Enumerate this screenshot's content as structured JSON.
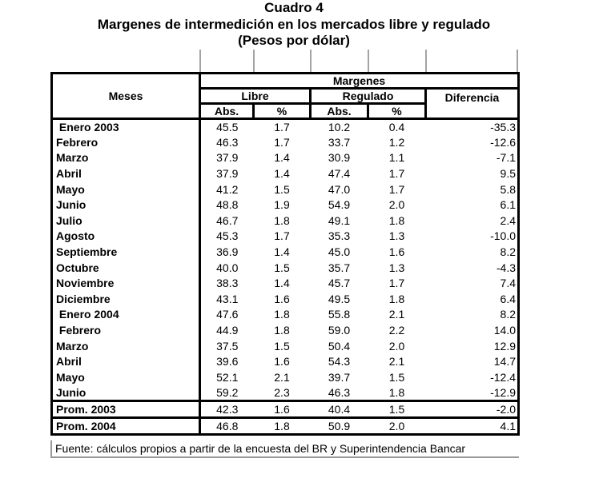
{
  "title": {
    "line1": "Cuadro 4",
    "line2": "Margenes de intermedición en los mercados libre y regulado",
    "line3": "(Pesos por dólar)"
  },
  "table": {
    "header": {
      "meses": "Meses",
      "margenes": "Margenes",
      "libre": "Libre",
      "regulado": "Regulado",
      "diferencia": "Diferencia",
      "abs": "Abs.",
      "pct": "%"
    },
    "columns": [
      "Meses",
      "Libre Abs.",
      "Libre %",
      "Regulado Abs.",
      "Regulado %",
      "Diferencia"
    ],
    "rows": [
      {
        "label": " Enero 2003",
        "values": [
          "45.5",
          "1.7",
          "10.2",
          "0.4",
          "-35.3"
        ]
      },
      {
        "label": "Febrero",
        "values": [
          "46.3",
          "1.7",
          "33.7",
          "1.2",
          "-12.6"
        ]
      },
      {
        "label": "Marzo",
        "values": [
          "37.9",
          "1.4",
          "30.9",
          "1.1",
          "-7.1"
        ]
      },
      {
        "label": "Abril",
        "values": [
          "37.9",
          "1.4",
          "47.4",
          "1.7",
          "9.5"
        ]
      },
      {
        "label": "Mayo",
        "values": [
          "41.2",
          "1.5",
          "47.0",
          "1.7",
          "5.8"
        ]
      },
      {
        "label": "Junio",
        "values": [
          "48.8",
          "1.9",
          "54.9",
          "2.0",
          "6.1"
        ]
      },
      {
        "label": "Julio",
        "values": [
          "46.7",
          "1.8",
          "49.1",
          "1.8",
          "2.4"
        ]
      },
      {
        "label": "Agosto",
        "values": [
          "45.3",
          "1.7",
          "35.3",
          "1.3",
          "-10.0"
        ]
      },
      {
        "label": "Septiembre",
        "values": [
          "36.9",
          "1.4",
          "45.0",
          "1.6",
          "8.2"
        ]
      },
      {
        "label": "Octubre",
        "values": [
          "40.0",
          "1.5",
          "35.7",
          "1.3",
          "-4.3"
        ]
      },
      {
        "label": "Noviembre",
        "values": [
          "38.3",
          "1.4",
          "45.7",
          "1.7",
          "7.4"
        ]
      },
      {
        "label": "Diciembre",
        "values": [
          "43.1",
          "1.6",
          "49.5",
          "1.8",
          "6.4"
        ]
      },
      {
        "label": " Enero 2004",
        "values": [
          "47.6",
          "1.8",
          "55.8",
          "2.1",
          "8.2"
        ]
      },
      {
        "label": " Febrero",
        "values": [
          "44.9",
          "1.8",
          "59.0",
          "2.2",
          "14.0"
        ]
      },
      {
        "label": "Marzo",
        "values": [
          "37.5",
          "1.5",
          "50.4",
          "2.0",
          "12.9"
        ]
      },
      {
        "label": "Abril",
        "values": [
          "39.6",
          "1.6",
          "54.3",
          "2.1",
          "14.7"
        ]
      },
      {
        "label": "Mayo",
        "values": [
          "52.1",
          "2.1",
          "39.7",
          "1.5",
          "-12.4"
        ]
      },
      {
        "label": "Junio",
        "values": [
          "59.2",
          "2.3",
          "46.3",
          "1.8",
          "-12.9"
        ]
      }
    ],
    "summary_rows": [
      {
        "label": "Prom. 2003",
        "values": [
          "42.3",
          "1.6",
          "40.4",
          "1.5",
          "-2.0"
        ]
      },
      {
        "label": "Prom. 2004",
        "values": [
          "46.8",
          "1.8",
          "50.9",
          "2.0",
          "4.1"
        ]
      }
    ]
  },
  "footer": {
    "source": "Fuente: cálculos propios a partir de la encuesta del BR y Superintendencia Bancar"
  },
  "colors": {
    "table_border": "#000000",
    "text": "#000000",
    "background": "#ffffff",
    "tick_gray": "#a3a3a3",
    "source_border_gray": "#999999"
  }
}
